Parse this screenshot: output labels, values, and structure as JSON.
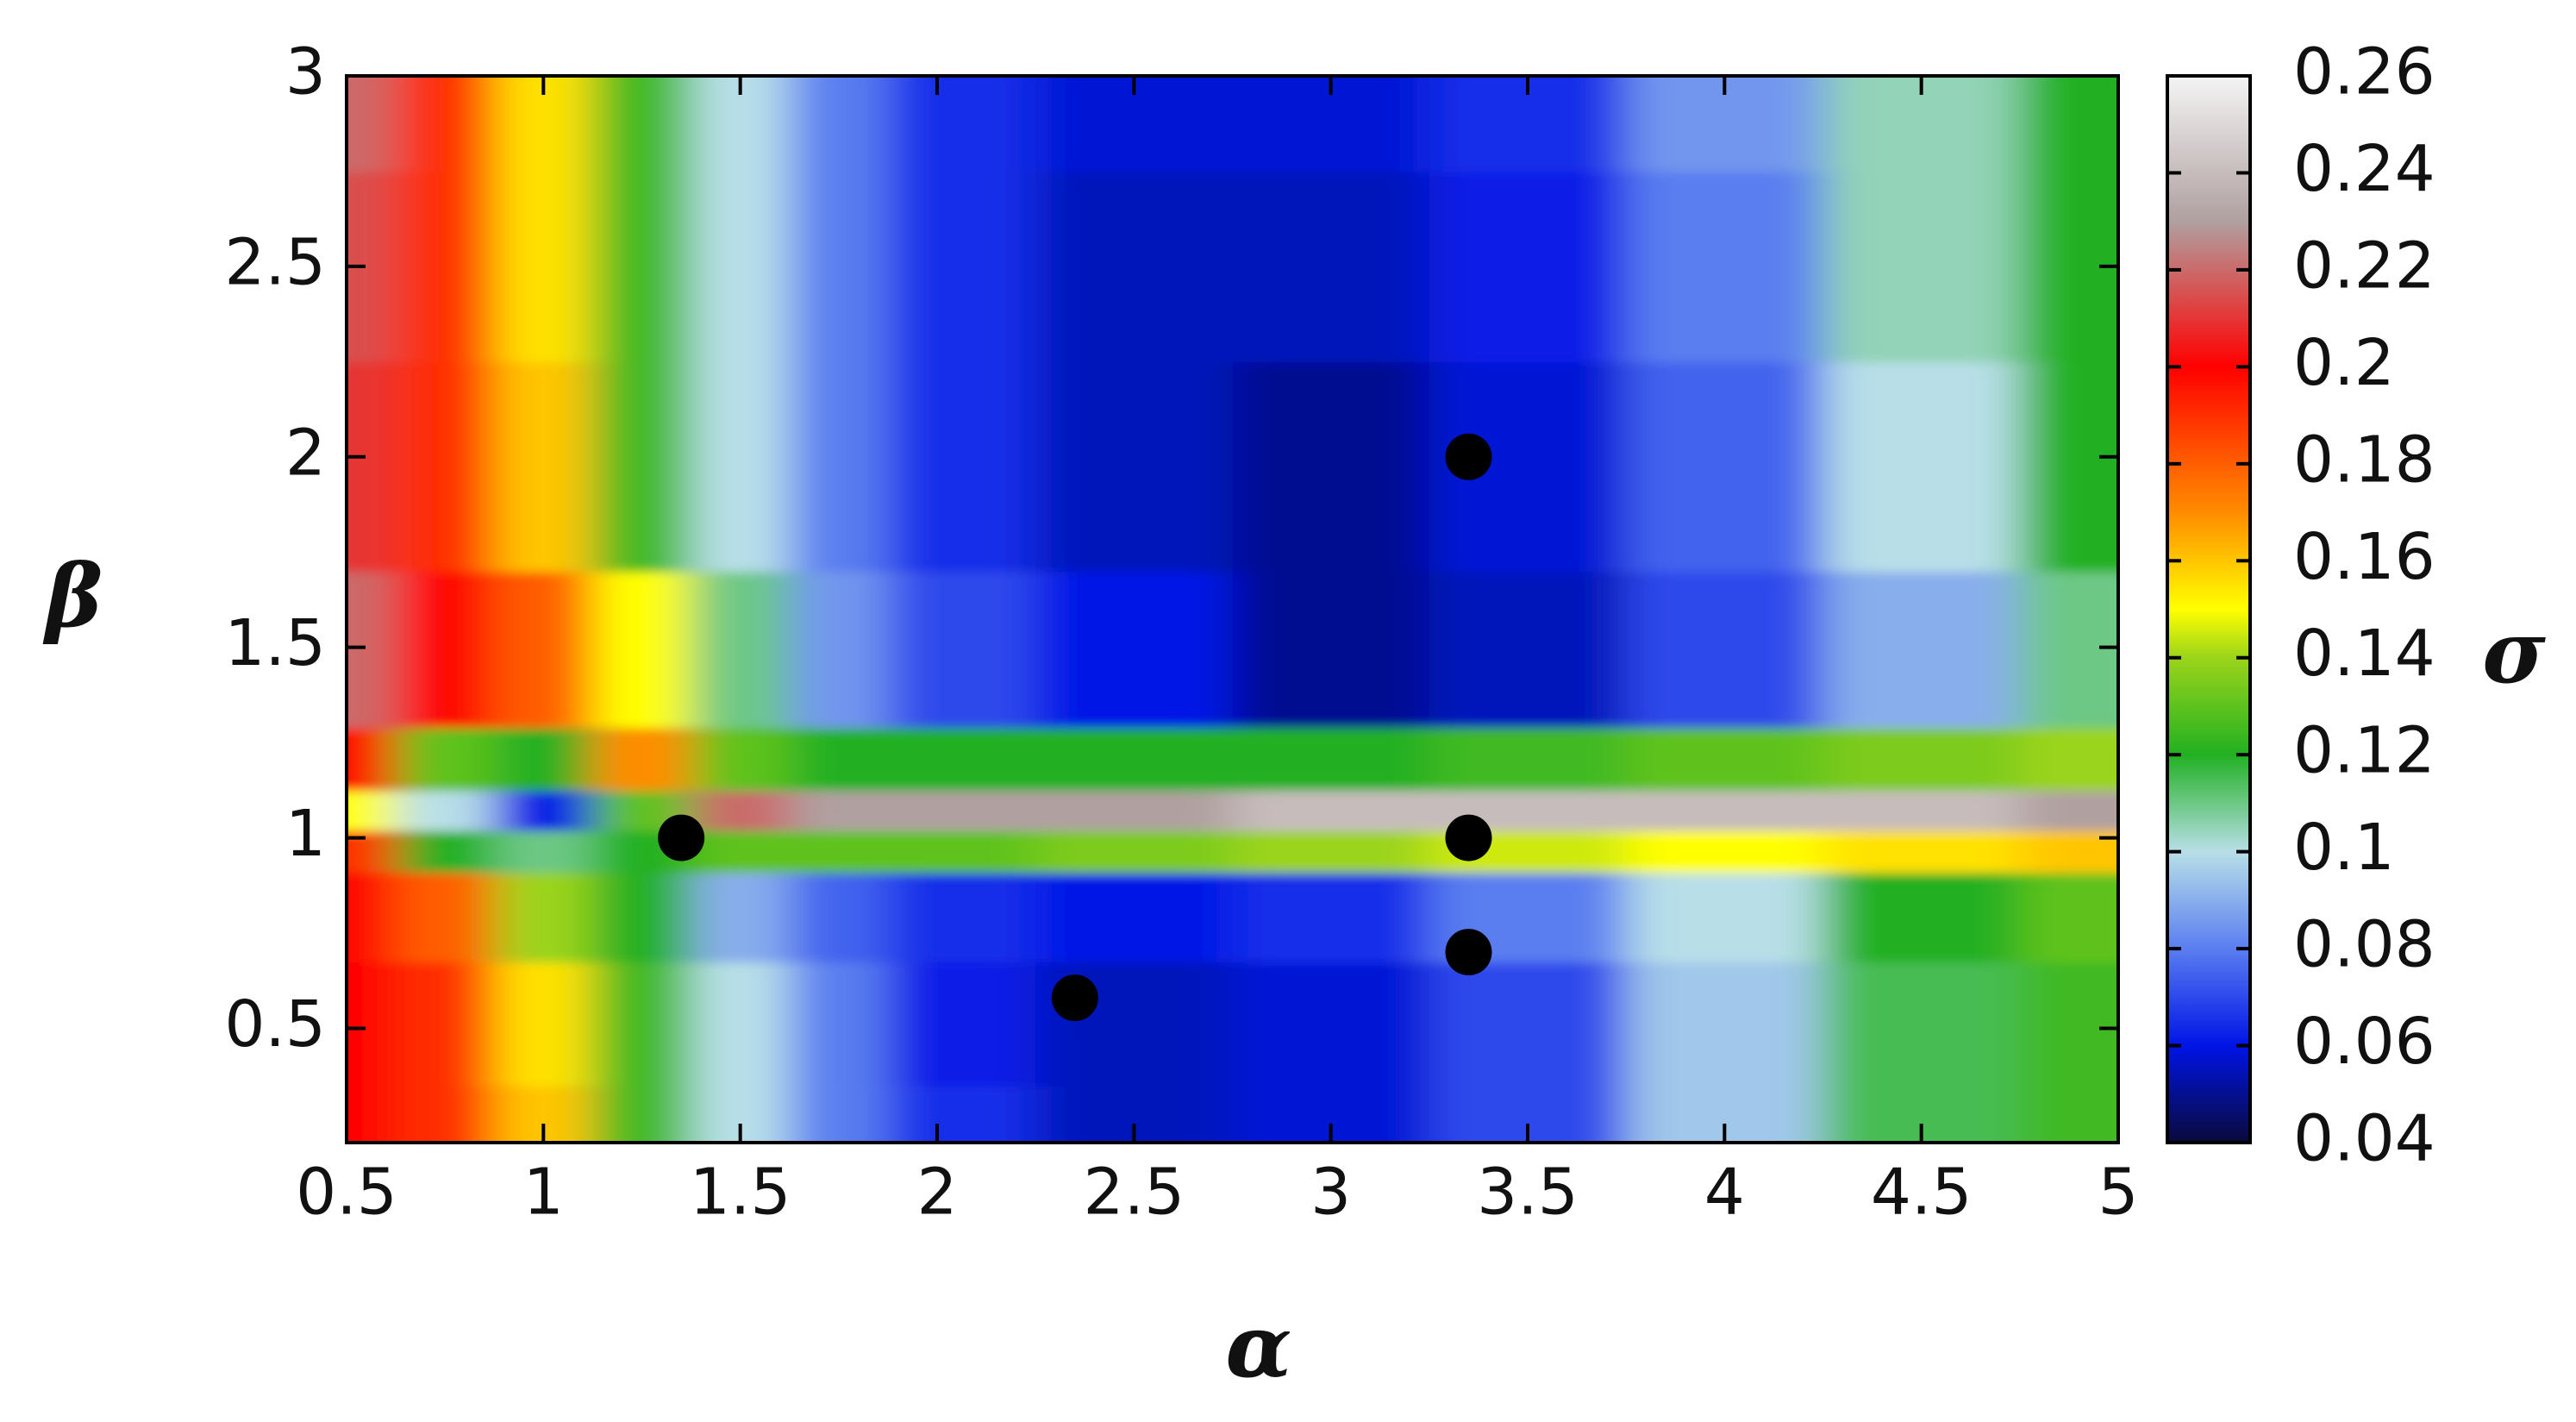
{
  "chart_data": {
    "type": "heatmap",
    "xlabel": "α",
    "ylabel": "β",
    "colorbar_label": "σ",
    "xlim": [
      0.5,
      5
    ],
    "xticks": [
      0.5,
      1,
      1.5,
      2,
      2.5,
      3,
      3.5,
      4,
      4.5,
      5
    ],
    "ylim": [
      0.2,
      3
    ],
    "yticks": [
      0.5,
      1,
      1.5,
      2,
      2.5,
      3
    ],
    "clim": [
      0.04,
      0.26
    ],
    "cticks": [
      0.04,
      0.06,
      0.08,
      0.1,
      0.12,
      0.14,
      0.16,
      0.18,
      0.2,
      0.22,
      0.24,
      0.26
    ],
    "colormap": [
      {
        "value": 0.04,
        "color": "#0a0a3a"
      },
      {
        "value": 0.06,
        "color": "#0014e6"
      },
      {
        "value": 0.08,
        "color": "#5a7ef0"
      },
      {
        "value": 0.1,
        "color": "#b8dfe8"
      },
      {
        "value": 0.12,
        "color": "#22b022"
      },
      {
        "value": 0.14,
        "color": "#9bd41a"
      },
      {
        "value": 0.15,
        "color": "#ffff00"
      },
      {
        "value": 0.17,
        "color": "#ff8c00"
      },
      {
        "value": 0.2,
        "color": "#ff0000"
      },
      {
        "value": 0.23,
        "color": "#b0a0a0"
      },
      {
        "value": 0.26,
        "color": "#f4f4f4"
      }
    ],
    "heatmap": {
      "x": [
        0.5,
        0.75,
        1,
        1.25,
        1.5,
        1.75,
        2,
        2.5,
        3,
        3.5,
        4,
        4.5,
        5
      ],
      "y": [
        0.2,
        0.5,
        0.85,
        0.97,
        1.07,
        1.18,
        1.4,
        2,
        2.5,
        3
      ],
      "z": [
        [
          0.2,
          0.19,
          0.16,
          0.125,
          0.1,
          0.08,
          0.065,
          0.055,
          0.058,
          0.07,
          0.095,
          0.115,
          0.125
        ],
        [
          0.2,
          0.19,
          0.155,
          0.125,
          0.1,
          0.08,
          0.062,
          0.055,
          0.058,
          0.07,
          0.095,
          0.115,
          0.125
        ],
        [
          0.2,
          0.18,
          0.14,
          0.12,
          0.09,
          0.075,
          0.065,
          0.06,
          0.065,
          0.08,
          0.1,
          0.12,
          0.13
        ],
        [
          0.19,
          0.12,
          0.11,
          0.12,
          0.13,
          0.13,
          0.13,
          0.135,
          0.14,
          0.145,
          0.15,
          0.155,
          0.16
        ],
        [
          0.15,
          0.1,
          0.06,
          0.13,
          0.22,
          0.23,
          0.23,
          0.23,
          0.24,
          0.24,
          0.24,
          0.24,
          0.23
        ],
        [
          0.2,
          0.13,
          0.12,
          0.17,
          0.13,
          0.12,
          0.12,
          0.12,
          0.12,
          0.125,
          0.13,
          0.135,
          0.14
        ],
        [
          0.22,
          0.2,
          0.18,
          0.15,
          0.11,
          0.085,
          0.07,
          0.06,
          0.05,
          0.055,
          0.07,
          0.09,
          0.11
        ],
        [
          0.21,
          0.19,
          0.16,
          0.125,
          0.1,
          0.08,
          0.065,
          0.055,
          0.05,
          0.058,
          0.075,
          0.1,
          0.12
        ],
        [
          0.215,
          0.19,
          0.155,
          0.125,
          0.1,
          0.08,
          0.065,
          0.055,
          0.055,
          0.062,
          0.08,
          0.105,
          0.12
        ],
        [
          0.22,
          0.19,
          0.155,
          0.125,
          0.1,
          0.08,
          0.065,
          0.058,
          0.058,
          0.065,
          0.085,
          0.105,
          0.12
        ]
      ]
    },
    "points": {
      "x": [
        1.35,
        2.35,
        3.35,
        3.35,
        3.35
      ],
      "y": [
        1,
        0.58,
        2,
        1,
        0.7
      ],
      "color": "#000000"
    }
  }
}
